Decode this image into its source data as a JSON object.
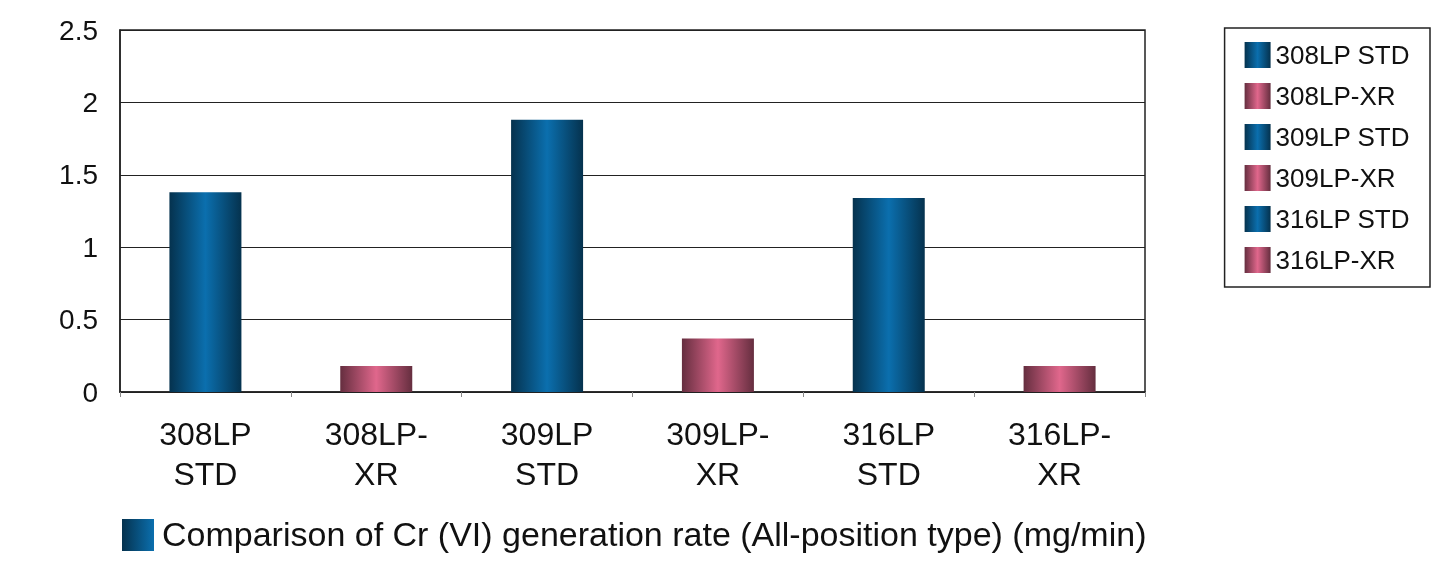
{
  "chart_data": {
    "type": "bar",
    "xlabel": "Comparison of Cr (VI) generation rate (All-position type) (mg/min)",
    "categories": [
      "308LP STD",
      "308LP-XR",
      "309LP STD",
      "309LP-XR",
      "316LP STD",
      "316LP-XR"
    ],
    "series": [
      {
        "name": "308LP STD",
        "color": "#0b6fae",
        "values": [
          1.38,
          null,
          null,
          null,
          null,
          null
        ]
      },
      {
        "name": "308LP-XR",
        "color": "#e0678c",
        "values": [
          null,
          0.18,
          null,
          null,
          null,
          null
        ]
      },
      {
        "name": "309LP STD",
        "color": "#0b6fae",
        "values": [
          null,
          null,
          1.88,
          null,
          null,
          null
        ]
      },
      {
        "name": "309LP-XR",
        "color": "#e0678c",
        "values": [
          null,
          null,
          null,
          0.37,
          null,
          null
        ]
      },
      {
        "name": "316LP STD",
        "color": "#0b6fae",
        "values": [
          null,
          null,
          null,
          null,
          1.34,
          null
        ]
      },
      {
        "name": "316LP-XR",
        "color": "#e0678c",
        "values": [
          null,
          null,
          null,
          null,
          null,
          0.18
        ]
      }
    ],
    "ylim": [
      0,
      2.5
    ],
    "yticks": [
      0,
      0.5,
      1,
      1.5,
      2,
      2.5
    ],
    "grid": "y",
    "legend": "right"
  }
}
